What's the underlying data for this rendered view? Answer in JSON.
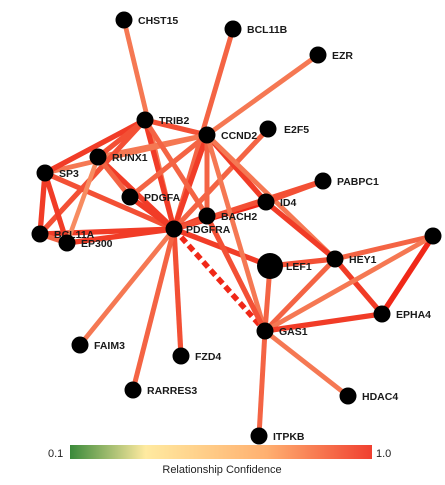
{
  "nodes": [
    {
      "id": "CHST15",
      "label": "CHST15"
    },
    {
      "id": "BCL11B",
      "label": "BCL11B"
    },
    {
      "id": "EZR",
      "label": "EZR"
    },
    {
      "id": "TRIB2",
      "label": "TRIB2"
    },
    {
      "id": "CCND2",
      "label": "CCND2"
    },
    {
      "id": "E2F5",
      "label": "E2F5"
    },
    {
      "id": "RUNX1",
      "label": "RUNX1"
    },
    {
      "id": "SP3",
      "label": "SP3"
    },
    {
      "id": "PDGFA",
      "label": "PDGFA"
    },
    {
      "id": "PABPC1",
      "label": "PABPC1"
    },
    {
      "id": "BACH2",
      "label": "BACH2"
    },
    {
      "id": "ID4",
      "label": "ID4"
    },
    {
      "id": "BCL11A",
      "label": "BCL11A"
    },
    {
      "id": "PDGFRA",
      "label": "PDGFRA"
    },
    {
      "id": "LEF1",
      "label": "LEF1"
    },
    {
      "id": "HEY1",
      "label": "HEY1"
    },
    {
      "id": "EP300",
      "label": "EP300"
    },
    {
      "id": "EPHA4",
      "label": "EPHA4"
    },
    {
      "id": "GAS1",
      "label": "GAS1"
    },
    {
      "id": "FAIM3",
      "label": "FAIM3"
    },
    {
      "id": "FZD4",
      "label": "FZD4"
    },
    {
      "id": "RARRES3",
      "label": "RARRES3"
    },
    {
      "id": "HDAC4",
      "label": "HDAC4"
    },
    {
      "id": "ITPKB",
      "label": "ITPKB"
    },
    {
      "id": "NODE_R",
      "label": ""
    }
  ],
  "edges": [
    {
      "source": "PDGFRA",
      "target": "CHST15",
      "confidence": 0.8
    },
    {
      "source": "PDGFRA",
      "target": "BCL11B",
      "confidence": 0.85
    },
    {
      "source": "PDGFRA",
      "target": "TRIB2",
      "confidence": 0.95
    },
    {
      "source": "PDGFRA",
      "target": "CCND2",
      "confidence": 0.95
    },
    {
      "source": "PDGFRA",
      "target": "E2F5",
      "confidence": 0.85
    },
    {
      "source": "PDGFRA",
      "target": "RUNX1",
      "confidence": 0.95
    },
    {
      "source": "PDGFRA",
      "target": "SP3",
      "confidence": 0.9
    },
    {
      "source": "PDGFRA",
      "target": "PDGFA",
      "confidence": 0.95
    },
    {
      "source": "PDGFRA",
      "target": "BACH2",
      "confidence": 0.95
    },
    {
      "source": "PDGFRA",
      "target": "ID4",
      "confidence": 1.0
    },
    {
      "source": "PDGFRA",
      "target": "PABPC1",
      "confidence": 0.9
    },
    {
      "source": "PDGFRA",
      "target": "BCL11A",
      "confidence": 0.95
    },
    {
      "source": "PDGFRA",
      "target": "EP300",
      "confidence": 0.95
    },
    {
      "source": "PDGFRA",
      "target": "LEF1",
      "confidence": 0.95
    },
    {
      "source": "PDGFRA",
      "target": "GAS1",
      "confidence": 1.0,
      "dashed": true
    },
    {
      "source": "PDGFRA",
      "target": "FAIM3",
      "confidence": 0.8
    },
    {
      "source": "PDGFRA",
      "target": "FZD4",
      "confidence": 0.9
    },
    {
      "source": "PDGFRA",
      "target": "RARRES3",
      "confidence": 0.85
    },
    {
      "source": "CCND2",
      "target": "EZR",
      "confidence": 0.8
    },
    {
      "source": "CCND2",
      "target": "TRIB2",
      "confidence": 0.9
    },
    {
      "source": "CCND2",
      "target": "RUNX1",
      "confidence": 0.8
    },
    {
      "source": "CCND2",
      "target": "SP3",
      "confidence": 0.8
    },
    {
      "source": "CCND2",
      "target": "PDGFA",
      "confidence": 0.85
    },
    {
      "source": "CCND2",
      "target": "ID4",
      "confidence": 0.95
    },
    {
      "source": "CCND2",
      "target": "BACH2",
      "confidence": 0.85
    },
    {
      "source": "CCND2",
      "target": "HEY1",
      "confidence": 0.8
    },
    {
      "source": "CCND2",
      "target": "GAS1",
      "confidence": 0.8
    },
    {
      "source": "TRIB2",
      "target": "SP3",
      "confidence": 0.95
    },
    {
      "source": "TRIB2",
      "target": "RUNX1",
      "confidence": 0.9
    },
    {
      "source": "TRIB2",
      "target": "BCL11A",
      "confidence": 0.9
    },
    {
      "source": "TRIB2",
      "target": "BACH2",
      "confidence": 0.85
    },
    {
      "source": "RUNX1",
      "target": "PDGFA",
      "confidence": 0.85
    },
    {
      "source": "RUNX1",
      "target": "EP300",
      "confidence": 0.75
    },
    {
      "source": "SP3",
      "target": "BCL11A",
      "confidence": 0.95
    },
    {
      "source": "SP3",
      "target": "EP300",
      "confidence": 0.95
    },
    {
      "source": "BCL11A",
      "target": "EP300",
      "confidence": 0.85
    },
    {
      "source": "ID4",
      "target": "PABPC1",
      "confidence": 0.9
    },
    {
      "source": "ID4",
      "target": "HEY1",
      "confidence": 0.95
    },
    {
      "source": "BACH2",
      "target": "GAS1",
      "confidence": 0.9
    },
    {
      "source": "LEF1",
      "target": "HEY1",
      "confidence": 0.9
    },
    {
      "source": "LEF1",
      "target": "GAS1",
      "confidence": 0.85
    },
    {
      "source": "HEY1",
      "target": "GAS1",
      "confidence": 0.85
    },
    {
      "source": "HEY1",
      "target": "EPHA4",
      "confidence": 0.95
    },
    {
      "source": "NODE_R",
      "target": "HEY1",
      "confidence": 0.85
    },
    {
      "source": "NODE_R",
      "target": "EPHA4",
      "confidence": 1.0
    },
    {
      "source": "NODE_R",
      "target": "GAS1",
      "confidence": 0.8
    },
    {
      "source": "GAS1",
      "target": "EPHA4",
      "confidence": 0.95
    },
    {
      "source": "GAS1",
      "target": "HDAC4",
      "confidence": 0.8
    },
    {
      "source": "GAS1",
      "target": "ITPKB",
      "confidence": 0.85
    }
  ],
  "legend": {
    "title": "Relationship Confidence",
    "min_label": "0.1",
    "max_label": "1.0",
    "gradient_colors": [
      "#3a8a3a",
      "#ffeaa0",
      "#ffb070",
      "#f04030"
    ]
  },
  "colors": {
    "node": "#000000",
    "edge_low": "#f8a070",
    "edge_high": "#f02818"
  }
}
